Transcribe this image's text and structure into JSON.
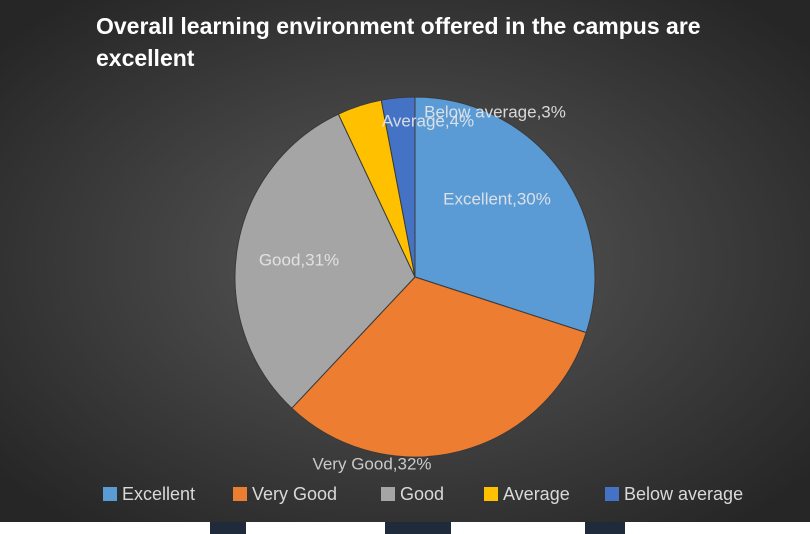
{
  "chart_data": {
    "type": "pie",
    "title": "Overall learning environment offered in the campus are excellent",
    "categories": [
      "Excellent",
      "Very Good",
      "Good",
      "Average",
      "Below average"
    ],
    "values": [
      30,
      32,
      31,
      4,
      3
    ],
    "value_labels": [
      "Excellent,30%",
      "Very Good,32%",
      "Good,31%",
      "Average,4%",
      "Below average,3%"
    ],
    "colors": [
      "#5b9bd5",
      "#ed7d31",
      "#a5a5a5",
      "#ffc000",
      "#4472c4"
    ],
    "legend": "bottom"
  }
}
